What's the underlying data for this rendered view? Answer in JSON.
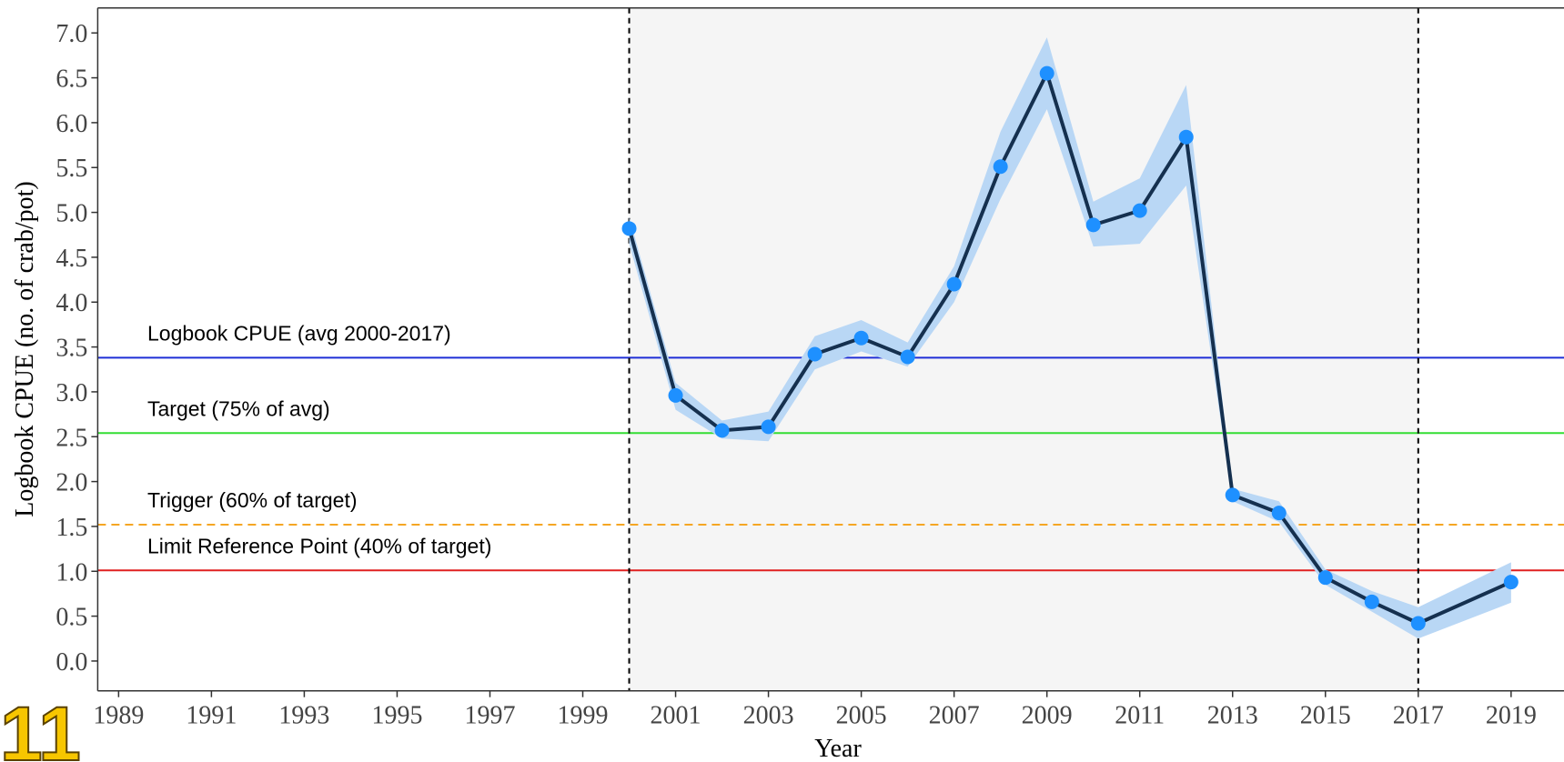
{
  "overlay_label": "11",
  "chart_data": {
    "type": "line",
    "x_label": "Year",
    "y_label": "Logbook CPUE (no. of crab/pot)",
    "xlim": [
      1988.55,
      2020.14
    ],
    "ylim": [
      -0.332,
      7.278
    ],
    "xticks": [
      1989,
      1991,
      1993,
      1995,
      1997,
      1999,
      2001,
      2003,
      2005,
      2007,
      2009,
      2011,
      2013,
      2015,
      2017,
      2019
    ],
    "yticks": [
      {
        "value": 0,
        "label": "0.0"
      },
      {
        "value": 0.5,
        "label": "0.5"
      },
      {
        "value": 1,
        "label": "1.0"
      },
      {
        "value": 1.5,
        "label": "1.5"
      },
      {
        "value": 2,
        "label": "2.0"
      },
      {
        "value": 2.5,
        "label": "2.5"
      },
      {
        "value": 3,
        "label": "3.0"
      },
      {
        "value": 3.5,
        "label": "3.5"
      },
      {
        "value": 4,
        "label": "4.0"
      },
      {
        "value": 4.5,
        "label": "4.5"
      },
      {
        "value": 5,
        "label": "5.0"
      },
      {
        "value": 5.5,
        "label": "5.5"
      },
      {
        "value": 6,
        "label": "6.0"
      },
      {
        "value": 6.5,
        "label": "6.5"
      },
      {
        "value": 7,
        "label": "7.0"
      }
    ],
    "shaded_period": [
      2000,
      2017
    ],
    "shade_color": "#f5f5f5",
    "reference_lines": [
      {
        "label": "Logbook CPUE (avg 2000-2017)",
        "value": 3.38,
        "color": "#1f2fd6",
        "dashed": false
      },
      {
        "label": "Target (75% of avg)",
        "value": 2.54,
        "color": "#33dd33",
        "dashed": false
      },
      {
        "label": "Trigger (60% of target)",
        "value": 1.52,
        "color": "#f5a623",
        "dashed": true
      },
      {
        "label": "Limit Reference Point (40% of target)",
        "value": 1.01,
        "color": "#e02020",
        "dashed": false
      }
    ],
    "x": [
      2000,
      2001,
      2002,
      2003,
      2004,
      2005,
      2006,
      2007,
      2008,
      2009,
      2010,
      2011,
      2012,
      2013,
      2014,
      2015,
      2016,
      2017,
      2019
    ],
    "series": [
      {
        "color": "#1e90ff",
        "line_color": "#15304f",
        "band_color": "#b9d7f5",
        "values": [
          4.82,
          2.96,
          2.57,
          2.61,
          3.42,
          3.6,
          3.39,
          4.2,
          5.51,
          6.55,
          4.86,
          5.02,
          5.84,
          1.85,
          1.65,
          0.93,
          0.66,
          0.42,
          0.88
        ],
        "lower": [
          4.65,
          2.8,
          2.48,
          2.45,
          3.25,
          3.45,
          3.28,
          4.0,
          5.15,
          6.15,
          4.62,
          4.65,
          5.3,
          1.78,
          1.55,
          0.85,
          0.55,
          0.25,
          0.65
        ],
        "upper": [
          4.95,
          3.1,
          2.68,
          2.78,
          3.62,
          3.8,
          3.55,
          4.4,
          5.9,
          6.95,
          5.12,
          5.38,
          6.42,
          1.92,
          1.78,
          1.02,
          0.78,
          0.6,
          1.1
        ]
      }
    ]
  }
}
